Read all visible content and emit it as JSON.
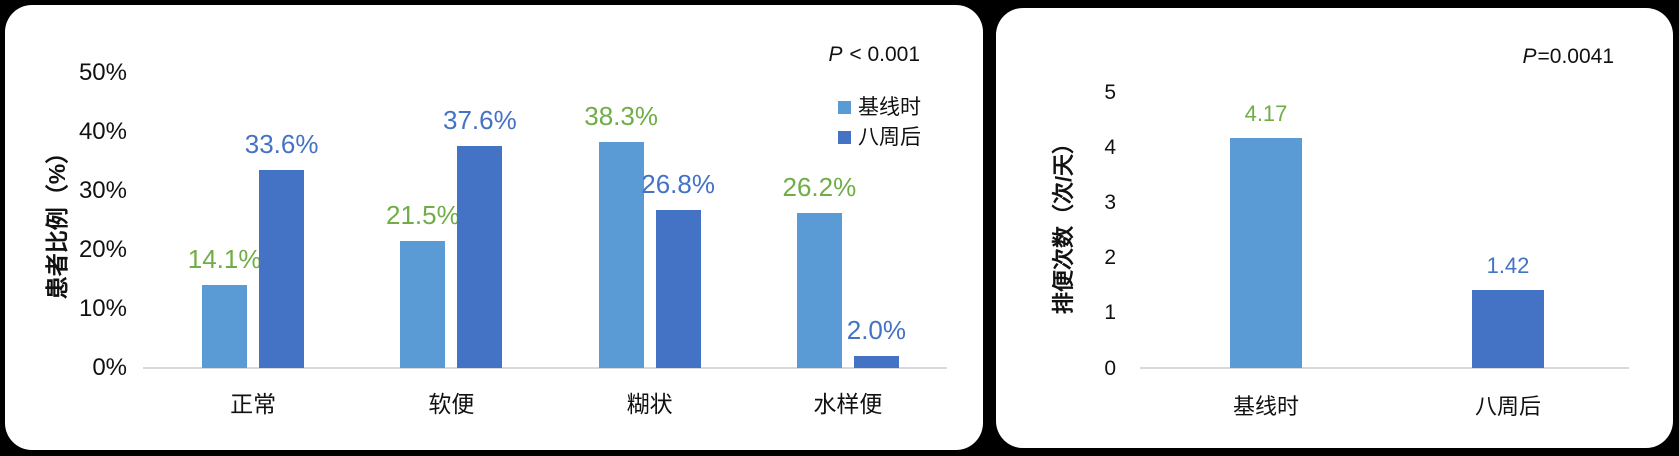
{
  "page": {
    "background": "#000000",
    "panel_background": "#FFFFFF"
  },
  "colors": {
    "baseline_series": "#5B9BD5",
    "week8_series": "#4472C4",
    "baseline_value_label": "#70AD47",
    "week8_value_label": "#4472C4",
    "axis_line": "#D9D9D9",
    "text": "#111111"
  },
  "chart_data": [
    {
      "type": "bar",
      "panel": "left",
      "p_value": {
        "prefix": "P",
        "suffix": " < 0.001"
      },
      "ylabel": "患者比例（%）",
      "ymax": 50,
      "ylim": [
        0,
        50
      ],
      "yticks": [
        "50%",
        "40%",
        "30%",
        "20%",
        "10%",
        "0%"
      ],
      "grid": false,
      "legend_position": "right",
      "categories": [
        "正常",
        "软便",
        "糊状",
        "水样便"
      ],
      "series": [
        {
          "key": "baseline",
          "name": "基线时",
          "color": "#5B9BD5",
          "label_color": "#70AD47",
          "values": [
            14.1,
            21.5,
            38.3,
            26.2
          ],
          "labels": [
            "14.1%",
            "21.5%",
            "38.3%",
            "26.2%"
          ]
        },
        {
          "key": "week8",
          "name": "八周后",
          "color": "#4472C4",
          "label_color": "#4472C4",
          "values": [
            33.6,
            37.6,
            26.8,
            2.0
          ],
          "labels": [
            "33.6%",
            "37.6%",
            "26.8%",
            "2.0%"
          ]
        }
      ],
      "legend": [
        "基线时",
        "八周后"
      ]
    },
    {
      "type": "bar",
      "panel": "right",
      "p_value": {
        "prefix": "P",
        "suffix": "=0.0041"
      },
      "ylabel": "排便次数（次/天）",
      "ymax": 5,
      "ylim": [
        0,
        5
      ],
      "yticks": [
        "5",
        "4",
        "3",
        "2",
        "1",
        "0"
      ],
      "grid": false,
      "categories": [
        "基线时",
        "八周后"
      ],
      "series": [
        {
          "key": "stool-frequency",
          "name": "排便次数",
          "colors": [
            "#5B9BD5",
            "#4472C4"
          ],
          "label_colors": [
            "#70AD47",
            "#4472C4"
          ],
          "values": [
            4.17,
            1.42
          ],
          "labels": [
            "4.17",
            "1.42"
          ]
        }
      ]
    }
  ]
}
